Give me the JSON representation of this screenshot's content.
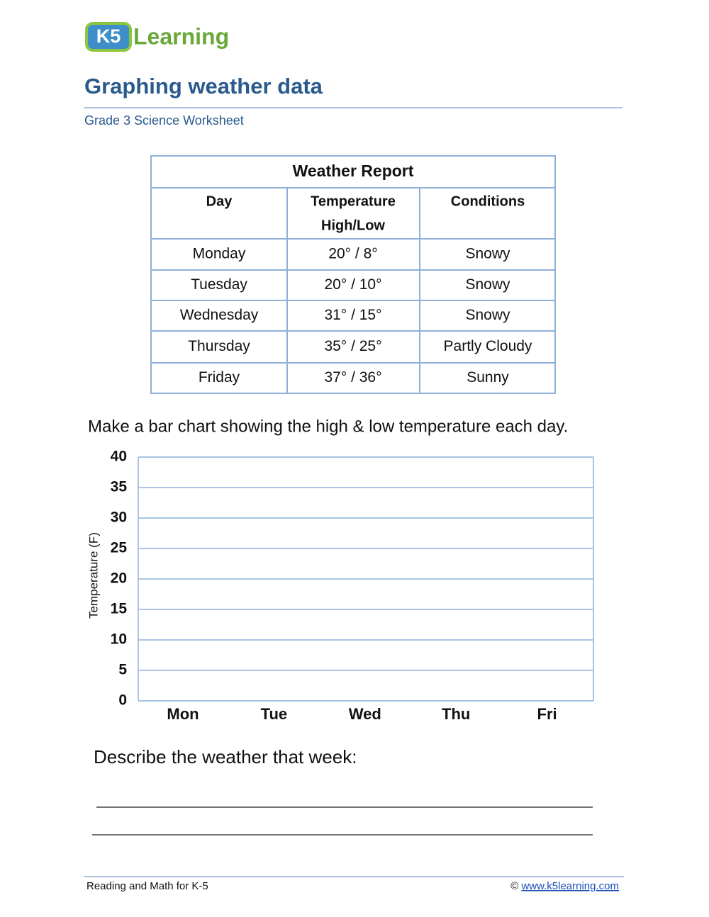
{
  "header": {
    "logo": {
      "badge": "K5",
      "text": "Learning"
    },
    "title": "Graphing weather data",
    "subtitle": "Grade 3 Science Worksheet"
  },
  "table": {
    "title": "Weather Report",
    "columns": [
      [
        "Day"
      ],
      [
        "Temperature",
        "High/Low"
      ],
      [
        "Conditions"
      ]
    ],
    "rows": [
      [
        "Monday",
        "20° / 8°",
        "Snowy"
      ],
      [
        "Tuesday",
        "20° / 10°",
        "Snowy"
      ],
      [
        "Wednesday",
        "31° / 15°",
        "Snowy"
      ],
      [
        "Thursday",
        "35° / 25°",
        "Partly Cloudy"
      ],
      [
        "Friday",
        "37° / 36°",
        "Sunny"
      ]
    ]
  },
  "prompt": "Make a bar chart showing the high & low temperature each day.",
  "chart": {
    "y_label": "Temperature (F)",
    "yticks": [
      0,
      5,
      10,
      15,
      20,
      25,
      30,
      35,
      40
    ],
    "categories": [
      "Mon",
      "Tue",
      "Wed",
      "Thu",
      "Fri"
    ]
  },
  "question": "Describe the weather that week:",
  "footer": {
    "left": "Reading and Math for K-5",
    "copyright": "©",
    "link": "www.k5learning.com"
  }
}
